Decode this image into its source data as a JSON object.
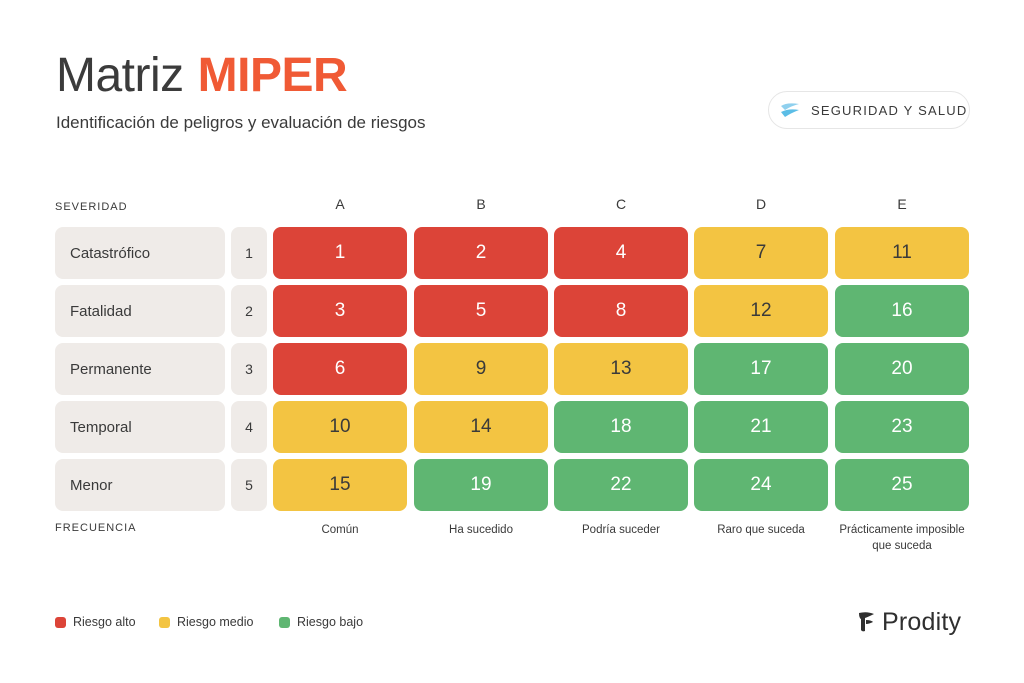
{
  "header": {
    "title_main": "Matriz",
    "title_accent": "MIPER",
    "subtitle": "Identificación de peligros y evaluación de riesgos",
    "badge_label": "SEGURIDAD Y SALUD"
  },
  "matrix": {
    "severity_label": "SEVERIDAD",
    "frequency_label": "FRECUENCIA",
    "columns": [
      {
        "letter": "A",
        "frequency": "Común"
      },
      {
        "letter": "B",
        "frequency": "Ha sucedido"
      },
      {
        "letter": "C",
        "frequency": "Podría suceder"
      },
      {
        "letter": "D",
        "frequency": "Raro que suceda"
      },
      {
        "letter": "E",
        "frequency": "Prácticamente imposible que suceda"
      }
    ],
    "rows": [
      {
        "name": "Catastrófico",
        "number": "1",
        "cells": [
          {
            "value": "1",
            "level": "high"
          },
          {
            "value": "2",
            "level": "high"
          },
          {
            "value": "4",
            "level": "high"
          },
          {
            "value": "7",
            "level": "mid"
          },
          {
            "value": "11",
            "level": "mid"
          }
        ]
      },
      {
        "name": "Fatalidad",
        "number": "2",
        "cells": [
          {
            "value": "3",
            "level": "high"
          },
          {
            "value": "5",
            "level": "high"
          },
          {
            "value": "8",
            "level": "high"
          },
          {
            "value": "12",
            "level": "mid"
          },
          {
            "value": "16",
            "level": "low"
          }
        ]
      },
      {
        "name": "Permanente",
        "number": "3",
        "cells": [
          {
            "value": "6",
            "level": "high"
          },
          {
            "value": "9",
            "level": "mid"
          },
          {
            "value": "13",
            "level": "mid"
          },
          {
            "value": "17",
            "level": "low"
          },
          {
            "value": "20",
            "level": "low"
          }
        ]
      },
      {
        "name": "Temporal",
        "number": "4",
        "cells": [
          {
            "value": "10",
            "level": "mid"
          },
          {
            "value": "14",
            "level": "mid"
          },
          {
            "value": "18",
            "level": "low"
          },
          {
            "value": "21",
            "level": "low"
          },
          {
            "value": "23",
            "level": "low"
          }
        ]
      },
      {
        "name": "Menor",
        "number": "5",
        "cells": [
          {
            "value": "15",
            "level": "mid"
          },
          {
            "value": "19",
            "level": "low"
          },
          {
            "value": "22",
            "level": "low"
          },
          {
            "value": "24",
            "level": "low"
          },
          {
            "value": "25",
            "level": "low"
          }
        ]
      }
    ]
  },
  "legend": [
    {
      "label": "Riesgo alto",
      "color": "#dc4438"
    },
    {
      "label": "Riesgo medio",
      "color": "#f3c442"
    },
    {
      "label": "Riesgo bajo",
      "color": "#5fb672"
    }
  ],
  "brand": {
    "name": "Prodity"
  },
  "colors": {
    "accent": "#f05a35",
    "high": "#dc4438",
    "mid": "#f3c442",
    "low": "#5fb672",
    "label_bg": "#efebe8"
  }
}
